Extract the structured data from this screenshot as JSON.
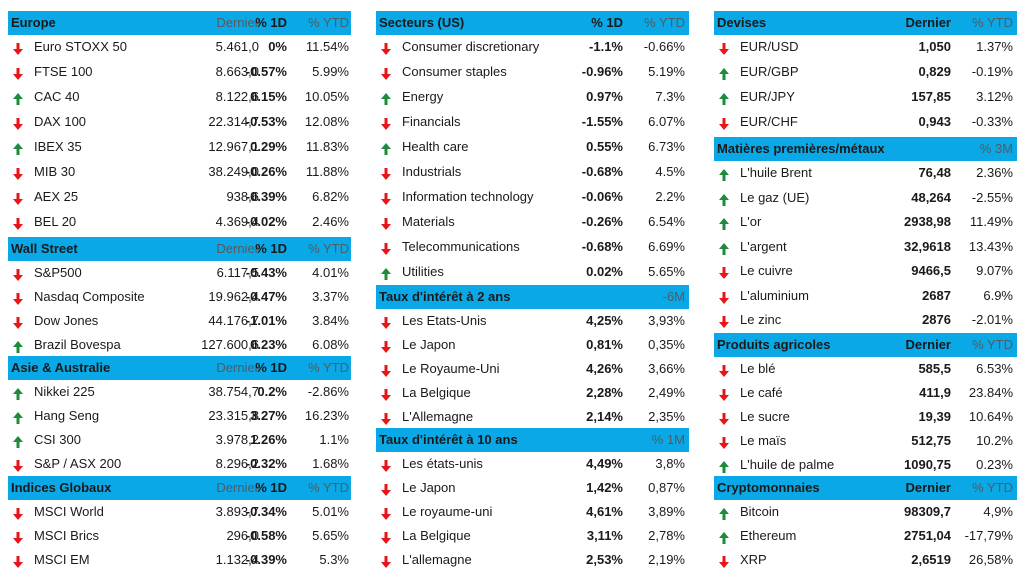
{
  "colors": {
    "header_bg": "#0aa8e6",
    "up": "#1e8a3c",
    "down": "#e8141a"
  },
  "icons": {
    "up": "arrow-up-icon",
    "down": "arrow-down-icon"
  },
  "europe": {
    "title": "Europe",
    "col1": "Dernier",
    "col2": "% 1D",
    "col3": "% YTD",
    "rows": [
      {
        "dir": "down",
        "name": "Euro STOXX 50",
        "last": "5.461,0",
        "d1": "0%",
        "ytd": "11.54%"
      },
      {
        "dir": "down",
        "name": "FTSE 100",
        "last": "8.663,0",
        "d1": "-0.57%",
        "ytd": "5.99%"
      },
      {
        "dir": "up",
        "name": "CAC 40",
        "last": "8.122,6",
        "d1": "0.15%",
        "ytd": "10.05%"
      },
      {
        "dir": "down",
        "name": "DAX 100",
        "last": "22.314,7",
        "d1": "-0.53%",
        "ytd": "12.08%"
      },
      {
        "dir": "up",
        "name": "IBEX 35",
        "last": "12.967,1",
        "d1": "0.29%",
        "ytd": "11.83%"
      },
      {
        "dir": "down",
        "name": "MIB 30",
        "last": "38.249,0",
        "d1": "-0.26%",
        "ytd": "11.88%"
      },
      {
        "dir": "down",
        "name": "AEX 25",
        "last": "938,6",
        "d1": "-0.39%",
        "ytd": "6.82%"
      },
      {
        "dir": "down",
        "name": "BEL 20",
        "last": "4.369,4",
        "d1": "-0.02%",
        "ytd": "2.46%"
      }
    ]
  },
  "wallstreet": {
    "title": "Wall Street",
    "col1": "Dernier",
    "col2": "% 1D",
    "col3": "% YTD",
    "rows": [
      {
        "dir": "down",
        "name": "S&P500",
        "last": "6.117,5",
        "d1": "-0.43%",
        "ytd": "4.01%"
      },
      {
        "dir": "down",
        "name": "Nasdaq Composite",
        "last": "19.962,4",
        "d1": "-0.47%",
        "ytd": "3.37%"
      },
      {
        "dir": "down",
        "name": "Dow Jones",
        "last": "44.176,7",
        "d1": "-1.01%",
        "ytd": "3.84%"
      },
      {
        "dir": "up",
        "name": "Brazil Bovespa",
        "last": "127.600,6",
        "d1": "0.23%",
        "ytd": "6.08%"
      }
    ]
  },
  "asia": {
    "title": "Asie & Australie",
    "col1": "Dernier",
    "col2": "% 1D",
    "col3": "% YTD",
    "rows": [
      {
        "dir": "up",
        "name": "Nikkei 225",
        "last": "38.754,7",
        "d1": "0.2%",
        "ytd": "-2.86%"
      },
      {
        "dir": "up",
        "name": "Hang Seng",
        "last": "23.315,8",
        "d1": "3.27%",
        "ytd": "16.23%"
      },
      {
        "dir": "up",
        "name": "CSI 300",
        "last": "3.978,2",
        "d1": "1.26%",
        "ytd": "1.1%"
      },
      {
        "dir": "down",
        "name": "S&P / ASX 200",
        "last": "8.296,2",
        "d1": "-0.32%",
        "ytd": "1.68%"
      }
    ]
  },
  "global": {
    "title": "Indices Globaux",
    "col1": "Dernier",
    "col2": "% 1D",
    "col3": "% YTD",
    "rows": [
      {
        "dir": "down",
        "name": "MSCI World",
        "last": "3.893,7",
        "d1": "-0.34%",
        "ytd": "5.01%"
      },
      {
        "dir": "down",
        "name": "MSCI Brics",
        "last": "296,0",
        "d1": "-0.58%",
        "ytd": "5.65%"
      },
      {
        "dir": "down",
        "name": "MSCI EM",
        "last": "1.132,4",
        "d1": "-0.39%",
        "ytd": "5.3%"
      }
    ]
  },
  "sectors": {
    "title": "Secteurs (US)",
    "col2": "% 1D",
    "col3": "% YTD",
    "rows": [
      {
        "dir": "down",
        "name": "Consumer discretionary",
        "d1": "-1.1%",
        "ytd": "-0.66%"
      },
      {
        "dir": "down",
        "name": "Consumer staples",
        "d1": "-0.96%",
        "ytd": "5.19%"
      },
      {
        "dir": "up",
        "name": "Energy",
        "d1": "0.97%",
        "ytd": "7.3%"
      },
      {
        "dir": "down",
        "name": "Financials",
        "d1": "-1.55%",
        "ytd": "6.07%"
      },
      {
        "dir": "up",
        "name": "Health care",
        "d1": "0.55%",
        "ytd": "6.73%"
      },
      {
        "dir": "down",
        "name": "Industrials",
        "d1": "-0.68%",
        "ytd": "4.5%"
      },
      {
        "dir": "down",
        "name": "Information technology",
        "d1": "-0.06%",
        "ytd": "2.2%"
      },
      {
        "dir": "down",
        "name": "Materials",
        "d1": "-0.26%",
        "ytd": "6.54%"
      },
      {
        "dir": "down",
        "name": "Telecommunications",
        "d1": "-0.68%",
        "ytd": "6.69%"
      },
      {
        "dir": "up",
        "name": "Utilities",
        "d1": "0.02%",
        "ytd": "5.65%"
      }
    ]
  },
  "rates2y": {
    "title": "Taux d'intérêt à 2 ans",
    "col3": "-6M",
    "rows": [
      {
        "dir": "down",
        "name": "Les Etats-Unis",
        "d1": "4,25%",
        "ytd": "3,93%"
      },
      {
        "dir": "down",
        "name": "Le Japon",
        "d1": "0,81%",
        "ytd": "0,35%"
      },
      {
        "dir": "down",
        "name": "Le Royaume-Uni",
        "d1": "4,26%",
        "ytd": "3,66%"
      },
      {
        "dir": "down",
        "name": "La Belgique",
        "d1": "2,28%",
        "ytd": "2,49%"
      },
      {
        "dir": "down",
        "name": "L'Allemagne",
        "d1": "2,14%",
        "ytd": "2,35%"
      }
    ]
  },
  "rates10y": {
    "title": "Taux d'intérêt à 10 ans",
    "col3": "% 1M",
    "rows": [
      {
        "dir": "down",
        "name": "Les états-unis",
        "d1": "4,49%",
        "ytd": "3,8%"
      },
      {
        "dir": "down",
        "name": "Le Japon",
        "d1": "1,42%",
        "ytd": "0,87%"
      },
      {
        "dir": "down",
        "name": "Le royaume-uni",
        "d1": "4,61%",
        "ytd": "3,89%"
      },
      {
        "dir": "down",
        "name": "La Belgique",
        "d1": "3,11%",
        "ytd": "2,78%"
      },
      {
        "dir": "down",
        "name": "L'allemagne",
        "d1": "2,53%",
        "ytd": "2,19%"
      }
    ]
  },
  "fx": {
    "title": "Devises",
    "col2": "Dernier",
    "col3": "% YTD",
    "rows": [
      {
        "dir": "down",
        "name": "EUR/USD",
        "d1": "1,050",
        "ytd": "1.37%"
      },
      {
        "dir": "up",
        "name": "EUR/GBP",
        "d1": "0,829",
        "ytd": "-0.19%"
      },
      {
        "dir": "up",
        "name": "EUR/JPY",
        "d1": "157,85",
        "ytd": "3.12%"
      },
      {
        "dir": "down",
        "name": "EUR/CHF",
        "d1": "0,943",
        "ytd": "-0.33%"
      }
    ]
  },
  "commodities": {
    "title": "Matières premières/métaux",
    "col3": "% 3M",
    "rows": [
      {
        "dir": "up",
        "name": "L'huile Brent",
        "d1": "76,48",
        "ytd": "2.36%"
      },
      {
        "dir": "up",
        "name": "Le gaz (UE)",
        "d1": "48,264",
        "ytd": "-2.55%"
      },
      {
        "dir": "up",
        "name": "L'or",
        "d1": "2938,98",
        "ytd": "11.49%"
      },
      {
        "dir": "up",
        "name": "L'argent",
        "d1": "32,9618",
        "ytd": "13.43%"
      },
      {
        "dir": "down",
        "name": "Le cuivre",
        "d1": "9466,5",
        "ytd": "9.07%"
      },
      {
        "dir": "down",
        "name": "L'aluminium",
        "d1": "2687",
        "ytd": "6.9%"
      },
      {
        "dir": "down",
        "name": "Le zinc",
        "d1": "2876",
        "ytd": "-2.01%"
      }
    ]
  },
  "agri": {
    "title": "Produits agricoles",
    "col2": "Dernier",
    "col3": "% YTD",
    "rows": [
      {
        "dir": "down",
        "name": "Le blé",
        "d1": "585,5",
        "ytd": "6.53%"
      },
      {
        "dir": "down",
        "name": "Le café",
        "d1": "411,9",
        "ytd": "23.84%"
      },
      {
        "dir": "down",
        "name": "Le sucre",
        "d1": "19,39",
        "ytd": "10.64%"
      },
      {
        "dir": "down",
        "name": "Le maïs",
        "d1": "512,75",
        "ytd": "10.2%"
      },
      {
        "dir": "up",
        "name": "L'huile de palme",
        "d1": "1090,75",
        "ytd": "0.23%"
      }
    ]
  },
  "crypto": {
    "title": "Cryptomonnaies",
    "col2": "Dernier",
    "col3": "% YTD",
    "rows": [
      {
        "dir": "up",
        "name": "Bitcoin",
        "d1": "98309,7",
        "ytd": "4,9%"
      },
      {
        "dir": "up",
        "name": "Ethereum",
        "d1": "2751,04",
        "ytd": "-17,79%"
      },
      {
        "dir": "down",
        "name": "XRP",
        "d1": "2,6519",
        "ytd": "26,58%"
      }
    ]
  }
}
